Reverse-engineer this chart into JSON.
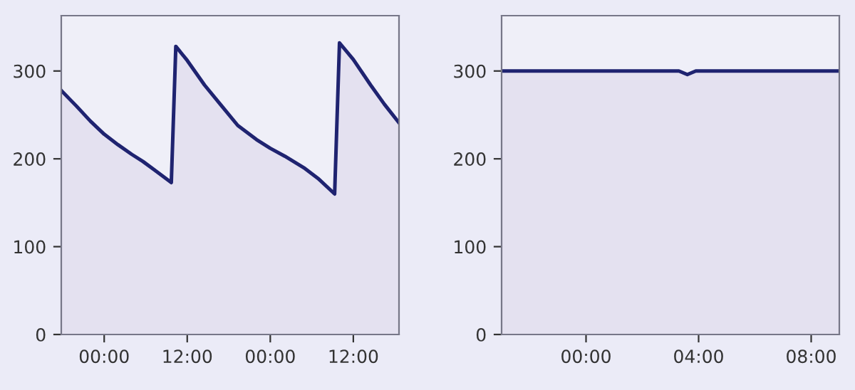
{
  "chart_data": [
    {
      "type": "area",
      "x": [
        "2000-01-01T17:54",
        "2000-01-01T20:00",
        "2000-01-01T22:00",
        "2000-01-02T00:00",
        "2000-01-02T02:00",
        "2000-01-02T04:00",
        "2000-01-02T05:36",
        "2000-01-02T07:30",
        "2000-01-02T09:42",
        "2000-01-02T10:21",
        "2000-01-02T12:00",
        "2000-01-02T14:30",
        "2000-01-02T17:00",
        "2000-01-02T19:18",
        "2000-01-02T22:00",
        "2000-01-03T00:00",
        "2000-01-03T02:06",
        "2000-01-03T05:00",
        "2000-01-03T07:00",
        "2000-01-03T09:18",
        "2000-01-03T10:00",
        "2000-01-03T12:00",
        "2000-01-03T14:30",
        "2000-01-03T16:30",
        "2000-01-03T18:36"
      ],
      "series": [
        {
          "color": "#1f2370",
          "values": [
            277,
            260,
            243,
            228,
            216,
            205,
            197,
            186,
            173,
            328,
            312,
            284,
            260,
            238,
            222,
            212,
            203,
            189,
            177,
            160,
            332,
            313,
            284,
            262,
            241
          ]
        }
      ],
      "xlim": [
        "2000-01-01T17:48",
        "2000-01-03T18:36"
      ],
      "xticks": [
        {
          "value": "2000-01-02T00:00",
          "label": "00:00"
        },
        {
          "value": "2000-01-02T12:00",
          "label": "12:00"
        },
        {
          "value": "2000-01-03T00:00",
          "label": "00:00"
        },
        {
          "value": "2000-01-03T12:00",
          "label": "12:00"
        }
      ],
      "ylim": [
        0,
        363
      ],
      "yticks": [
        0,
        100,
        200,
        300
      ],
      "grid": false
    },
    {
      "type": "area",
      "x": [
        "2000-01-01T21:00",
        "2000-01-02T03:18",
        "2000-01-02T03:36",
        "2000-01-02T03:54",
        "2000-01-02T09:00"
      ],
      "series": [
        {
          "color": "#1f2370",
          "values": [
            300,
            300,
            296,
            300,
            300
          ]
        }
      ],
      "xlim": [
        "2000-01-01T21:00",
        "2000-01-02T09:00"
      ],
      "xticks": [
        {
          "value": "2000-01-02T00:00",
          "label": "00:00"
        },
        {
          "value": "2000-01-02T04:00",
          "label": "04:00"
        },
        {
          "value": "2000-01-02T08:00",
          "label": "08:00"
        }
      ],
      "ylim": [
        0,
        363
      ],
      "yticks": [
        0,
        100,
        200,
        300
      ],
      "grid": false
    }
  ]
}
